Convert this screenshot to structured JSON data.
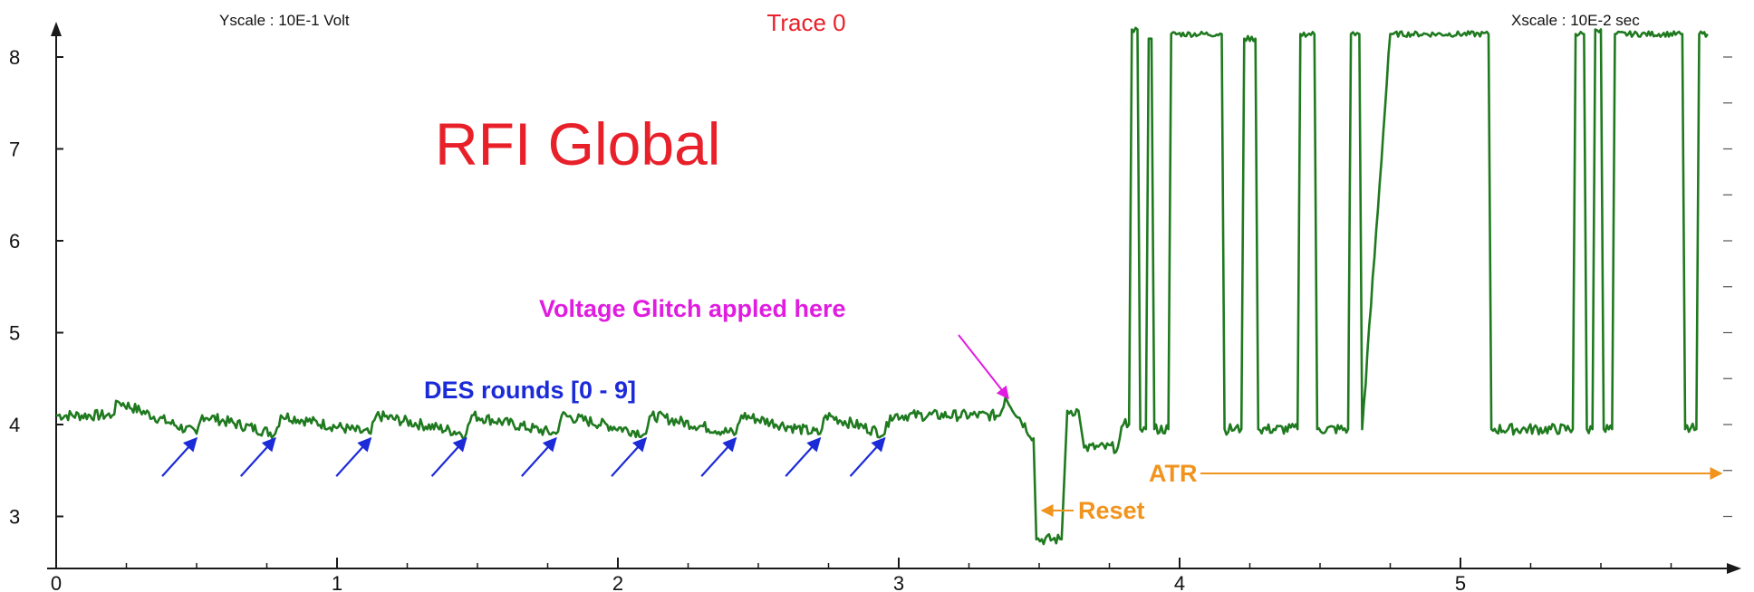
{
  "chart_data": {
    "type": "line",
    "title": "Trace 0",
    "yscale_label": "Yscale :  10E-1  Volt",
    "xscale_label": "Xscale :  10E-2  sec",
    "watermark": "RFI Global",
    "xlim": [
      0,
      5.9
    ],
    "ylim": [
      2.7,
      8.5
    ],
    "x_ticks": [
      "0",
      "1",
      "2",
      "3",
      "4",
      "5"
    ],
    "y_ticks": [
      "3",
      "4",
      "5",
      "6",
      "7",
      "8"
    ],
    "grid": false,
    "series": [
      {
        "color": "#1f7a1f",
        "x": [
          0,
          0.2,
          0.22,
          0.5,
          0.52,
          0.78,
          0.8,
          1.12,
          1.14,
          1.46,
          1.48,
          1.78,
          1.8,
          2.1,
          2.12,
          2.42,
          2.44,
          2.72,
          2.74,
          2.95,
          2.97,
          3.36,
          3.38,
          3.48,
          3.49,
          3.58,
          3.6,
          3.64,
          3.66,
          3.78,
          3.8,
          3.82,
          3.83,
          3.85,
          3.86,
          3.88,
          3.89,
          3.9,
          3.91,
          3.96,
          3.97,
          4.15,
          4.16,
          4.22,
          4.23,
          4.27,
          4.28,
          4.42,
          4.43,
          4.48,
          4.49,
          4.6,
          4.61,
          4.64,
          4.65,
          4.75,
          4.76,
          5.1,
          5.11,
          5.4,
          5.41,
          5.44,
          5.45,
          5.47,
          5.48,
          5.5,
          5.51,
          5.54,
          5.55,
          5.79,
          5.8,
          5.84,
          5.85,
          5.88
        ],
        "y": [
          4.1,
          4.1,
          4.25,
          3.9,
          4.1,
          3.9,
          4.1,
          3.9,
          4.1,
          3.9,
          4.1,
          3.9,
          4.1,
          3.9,
          4.1,
          3.9,
          4.1,
          3.9,
          4.1,
          3.9,
          4.1,
          4.1,
          4.3,
          3.85,
          2.75,
          2.75,
          4.15,
          4.15,
          3.75,
          3.75,
          4.0,
          4.0,
          8.3,
          8.3,
          3.95,
          3.95,
          8.2,
          8.2,
          3.95,
          3.95,
          8.25,
          8.25,
          3.95,
          3.95,
          8.2,
          8.2,
          3.95,
          3.95,
          8.25,
          8.25,
          3.95,
          3.95,
          8.25,
          8.25,
          3.95,
          8.25,
          8.25,
          8.25,
          3.95,
          3.95,
          8.25,
          8.25,
          3.95,
          3.95,
          8.3,
          8.3,
          3.95,
          3.95,
          8.25,
          8.25,
          3.95,
          3.95,
          8.25,
          8.25
        ]
      }
    ],
    "annotations": {
      "glitch": "Voltage Glitch appled here",
      "des": "DES rounds [0 - 9]",
      "reset": "Reset",
      "atr": "ATR"
    },
    "des_round_arrows_at_x": [
      0.5,
      0.78,
      1.12,
      1.46,
      1.78,
      2.1,
      2.42,
      2.72,
      2.95
    ],
    "colors": {
      "trace": "#1f7a1f",
      "title": "#e8202a",
      "watermark": "#e8202a",
      "glitch": "#e01ce0",
      "des": "#1c2bd8",
      "reset_atr": "#f0941e",
      "axis": "#1a1a1a"
    }
  }
}
